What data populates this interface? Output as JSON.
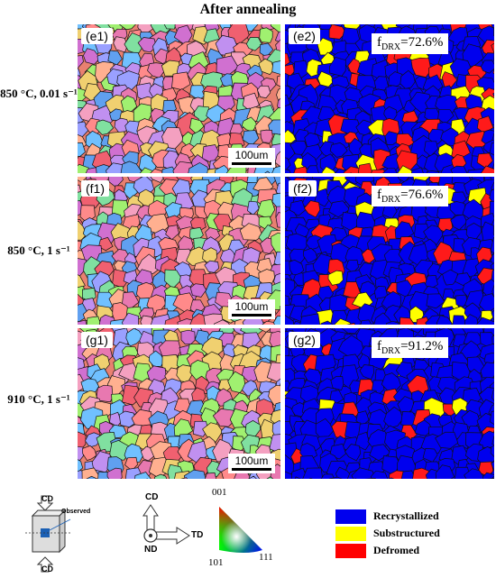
{
  "title": "After annealing",
  "rows": [
    {
      "label": "850 °C, 0.01 s⁻¹",
      "ipf_label": "(e1)",
      "map_label": "(e2)",
      "fdrx_value": "=72.6%",
      "scalebar": "100um",
      "fdrx": 0.726
    },
    {
      "label": "850 °C, 1 s⁻¹",
      "ipf_label": "(f1)",
      "map_label": "(f2)",
      "fdrx_value": "=76.6%",
      "scalebar": "100um",
      "fdrx": 0.766
    },
    {
      "label": "910 °C, 1 s⁻¹",
      "ipf_label": "(g1)",
      "map_label": "(g2)",
      "fdrx_value": "=91.2%",
      "scalebar": "100um",
      "fdrx": 0.912
    }
  ],
  "fdrx_symbol": "f",
  "fdrx_subscript": "DRX",
  "legend": [
    {
      "label": "Recrystallized",
      "color": "#0000ee"
    },
    {
      "label": "Substructured",
      "color": "#ffff00"
    },
    {
      "label": "Defromed",
      "color": "#ff0000"
    }
  ],
  "axes_diagram": {
    "cd_top": "CD",
    "cd_bottom": "CD",
    "observed": "Observed",
    "cd": "CD",
    "td": "TD",
    "nd": "ND"
  },
  "ipf_triangle": {
    "top": "001",
    "left": "101",
    "right": "111"
  }
}
